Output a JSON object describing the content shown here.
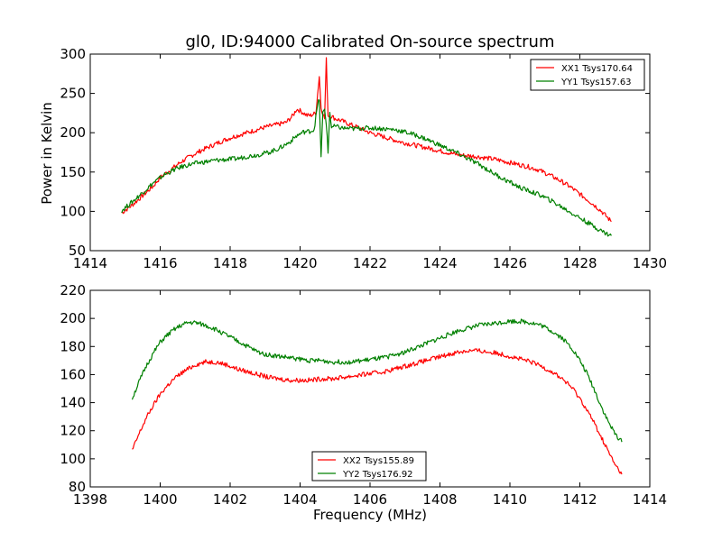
{
  "chart_data": [
    {
      "type": "line",
      "title": "gl0, ID:94000 Calibrated On-source spectrum",
      "xlabel": "",
      "ylabel": "Power in Kelvin",
      "xlim": [
        1414,
        1430
      ],
      "ylim": [
        50,
        300
      ],
      "xticks": [
        1414,
        1416,
        1418,
        1420,
        1422,
        1424,
        1426,
        1428,
        1430
      ],
      "yticks": [
        50,
        100,
        150,
        200,
        250,
        300
      ],
      "grid": false,
      "legend_position": "top-right",
      "series": [
        {
          "name": "XX1 Tsys170.64",
          "color": "#ff0000",
          "x": [
            1414.9,
            1415.2,
            1415.5,
            1415.8,
            1416.0,
            1416.3,
            1416.6,
            1416.9,
            1417.2,
            1417.5,
            1417.8,
            1418.1,
            1418.4,
            1418.7,
            1419.0,
            1419.3,
            1419.6,
            1419.8,
            1419.9,
            1420.0,
            1420.2,
            1420.3,
            1420.45,
            1420.55,
            1420.6,
            1420.7,
            1420.75,
            1420.8,
            1420.9,
            1421.0,
            1421.2,
            1421.4,
            1421.7,
            1422.0,
            1422.3,
            1422.6,
            1422.9,
            1423.2,
            1423.5,
            1423.8,
            1424.1,
            1424.4,
            1424.7,
            1425.0,
            1425.3,
            1425.6,
            1425.9,
            1426.2,
            1426.5,
            1426.8,
            1427.1,
            1427.4,
            1427.7,
            1428.0,
            1428.3,
            1428.6,
            1428.9
          ],
          "values": [
            98,
            108,
            120,
            132,
            143,
            153,
            163,
            171,
            178,
            184,
            190,
            195,
            199,
            203,
            207,
            210,
            213,
            222,
            230,
            228,
            222,
            222,
            225,
            272,
            232,
            218,
            293,
            222,
            221,
            218,
            215,
            211,
            206,
            200,
            196,
            192,
            188,
            185,
            182,
            179,
            176,
            173,
            171,
            170,
            168,
            166,
            163,
            160,
            157,
            153,
            147,
            140,
            132,
            122,
            112,
            101,
            87
          ]
        },
        {
          "name": "YY1 Tsys157.63",
          "color": "#008000",
          "x": [
            1414.9,
            1415.2,
            1415.5,
            1415.8,
            1416.1,
            1416.4,
            1416.7,
            1417.0,
            1417.3,
            1417.6,
            1417.9,
            1418.2,
            1418.5,
            1418.8,
            1419.1,
            1419.4,
            1419.7,
            1419.9,
            1420.1,
            1420.3,
            1420.4,
            1420.5,
            1420.55,
            1420.6,
            1420.65,
            1420.7,
            1420.75,
            1420.8,
            1420.85,
            1420.9,
            1421.0,
            1421.2,
            1421.5,
            1421.8,
            1422.1,
            1422.4,
            1422.7,
            1423.0,
            1423.3,
            1423.6,
            1423.9,
            1424.2,
            1424.5,
            1424.8,
            1425.1,
            1425.4,
            1425.7,
            1426.0,
            1426.3,
            1426.6,
            1426.9,
            1427.2,
            1427.5,
            1427.8,
            1428.1,
            1428.4,
            1428.7,
            1428.9
          ],
          "values": [
            101,
            112,
            124,
            136,
            146,
            153,
            158,
            161,
            163,
            165,
            166,
            167,
            170,
            172,
            175,
            180,
            188,
            196,
            201,
            202,
            204,
            235,
            243,
            168,
            225,
            230,
            212,
            175,
            226,
            207,
            208,
            206,
            205,
            206,
            206,
            205,
            204,
            201,
            197,
            192,
            186,
            180,
            174,
            167,
            160,
            152,
            144,
            137,
            130,
            125,
            120,
            113,
            105,
            97,
            89,
            81,
            73,
            69
          ]
        }
      ]
    },
    {
      "type": "line",
      "title": "",
      "xlabel": "Frequency (MHz)",
      "ylabel": "",
      "xlim": [
        1398,
        1414
      ],
      "ylim": [
        80,
        220
      ],
      "xticks": [
        1398,
        1400,
        1402,
        1404,
        1406,
        1408,
        1410,
        1412,
        1414
      ],
      "yticks": [
        80,
        100,
        120,
        140,
        160,
        180,
        200,
        220
      ],
      "grid": false,
      "legend_position": "bottom-center",
      "series": [
        {
          "name": "XX2 Tsys155.89",
          "color": "#ff0000",
          "x": [
            1399.2,
            1399.4,
            1399.6,
            1399.8,
            1400.0,
            1400.2,
            1400.4,
            1400.6,
            1400.8,
            1401.0,
            1401.3,
            1401.6,
            1401.9,
            1402.2,
            1402.5,
            1402.8,
            1403.1,
            1403.4,
            1403.7,
            1404.0,
            1404.3,
            1404.6,
            1404.9,
            1405.2,
            1405.5,
            1405.8,
            1406.1,
            1406.4,
            1406.7,
            1407.0,
            1407.3,
            1407.6,
            1407.9,
            1408.2,
            1408.5,
            1408.8,
            1409.1,
            1409.4,
            1409.7,
            1410.0,
            1410.3,
            1410.6,
            1410.9,
            1411.2,
            1411.5,
            1411.8,
            1412.0,
            1412.2,
            1412.4,
            1412.6,
            1412.8,
            1413.0,
            1413.2
          ],
          "values": [
            106,
            118,
            129,
            138,
            146,
            152,
            157,
            161,
            164,
            167,
            169,
            169,
            167,
            164,
            162,
            160,
            158,
            157,
            156,
            156,
            156,
            157,
            157,
            158,
            159,
            160,
            161,
            162,
            164,
            166,
            168,
            170,
            172,
            174,
            176,
            177,
            177,
            176,
            175,
            173,
            171,
            169,
            166,
            162,
            157,
            150,
            143,
            135,
            126,
            116,
            106,
            96,
            89
          ]
        },
        {
          "name": "YY2 Tsys176.92",
          "color": "#008000",
          "x": [
            1399.2,
            1399.4,
            1399.6,
            1399.8,
            1400.0,
            1400.2,
            1400.4,
            1400.6,
            1400.8,
            1401.0,
            1401.3,
            1401.6,
            1401.9,
            1402.2,
            1402.5,
            1402.8,
            1403.1,
            1403.4,
            1403.7,
            1404.0,
            1404.3,
            1404.6,
            1404.9,
            1405.2,
            1405.5,
            1405.8,
            1406.1,
            1406.4,
            1406.7,
            1407.0,
            1407.3,
            1407.6,
            1407.9,
            1408.2,
            1408.5,
            1408.8,
            1409.1,
            1409.4,
            1409.7,
            1410.0,
            1410.3,
            1410.6,
            1410.9,
            1411.2,
            1411.5,
            1411.8,
            1412.0,
            1412.2,
            1412.4,
            1412.6,
            1412.8,
            1413.0,
            1413.2
          ],
          "values": [
            143,
            155,
            166,
            175,
            183,
            188,
            192,
            195,
            197,
            197,
            195,
            192,
            188,
            184,
            180,
            176,
            174,
            173,
            172,
            171,
            170,
            170,
            169,
            169,
            169,
            170,
            171,
            172,
            174,
            176,
            179,
            182,
            185,
            188,
            191,
            193,
            195,
            196,
            197,
            198,
            198,
            197,
            195,
            191,
            186,
            178,
            170,
            161,
            150,
            138,
            127,
            118,
            112
          ]
        }
      ]
    }
  ]
}
